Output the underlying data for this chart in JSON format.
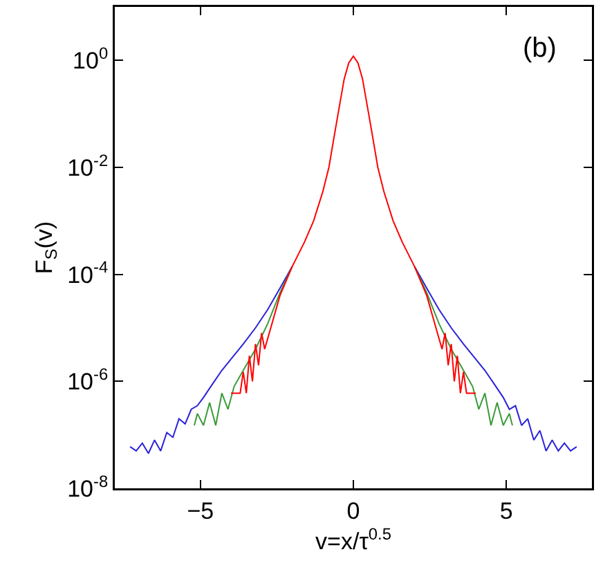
{
  "chart_data": {
    "type": "line",
    "xlabel": "v=x/τ$^{0.5}$",
    "ylabel": "F$_{S}$(v)",
    "annotations": [
      "(b)"
    ],
    "log": "y",
    "grid": false,
    "marker": "none",
    "line_style": "solid",
    "xlim": [
      -7.8,
      7.8
    ],
    "xticks": [
      -5,
      0,
      5
    ],
    "ylim": [
      1e-08,
      10
    ],
    "yticks": [
      {
        "value": 1e-08,
        "label": "10$^{-8}$"
      },
      {
        "value": 1e-06,
        "label": "10$^{-6}$"
      },
      {
        "value": 0.0001,
        "label": "10$^{-4}$"
      },
      {
        "value": 0.01,
        "label": "10$^{-2}$"
      },
      {
        "value": 1,
        "label": "10$^{0}$"
      }
    ],
    "series": [
      {
        "color": "#2a22d8",
        "x": [
          -7.3,
          -7.1,
          -6.9,
          -6.7,
          -6.5,
          -6.3,
          -6.1,
          -5.9,
          -5.7,
          -5.5,
          -5.3,
          -5.1,
          -4.9,
          -4.6,
          -4.3,
          -4.0,
          -3.6,
          -3.2,
          -2.8,
          -2.4,
          -2.0,
          -1.6,
          -1.3,
          -1.0,
          -0.8,
          -0.65,
          -0.5,
          -0.3,
          -0.15,
          0,
          0.15,
          0.3,
          0.5,
          0.65,
          0.8,
          1.0,
          1.3,
          1.6,
          2.0,
          2.4,
          2.8,
          3.2,
          3.6,
          4.0,
          4.3,
          4.6,
          4.9,
          5.1,
          5.3,
          5.5,
          5.7,
          5.9,
          6.1,
          6.3,
          6.5,
          6.7,
          6.9,
          7.1,
          7.3
        ],
        "values": [
          6e-08,
          5e-08,
          7e-08,
          4.5e-08,
          8e-08,
          5e-08,
          1.1e-07,
          9e-08,
          2e-07,
          1.6e-07,
          3e-07,
          3.5e-07,
          5e-07,
          9e-07,
          1.6e-06,
          2.6e-06,
          5e-06,
          1e-05,
          2.2e-05,
          5.5e-05,
          0.00014,
          null,
          null,
          null,
          null,
          null,
          null,
          null,
          null,
          null,
          null,
          null,
          null,
          null,
          null,
          null,
          null,
          null,
          0.00014,
          5.5e-05,
          2.2e-05,
          1e-05,
          5e-06,
          2.6e-06,
          1.6e-06,
          9e-07,
          5e-07,
          3e-07,
          3.5e-07,
          1.5e-07,
          2e-07,
          8e-08,
          1.2e-07,
          5e-08,
          8e-08,
          5e-08,
          7e-08,
          5e-08,
          6e-08
        ]
      },
      {
        "color": "#3a9a3a",
        "x": [
          -5.2,
          -5.1,
          -4.9,
          -4.7,
          -4.5,
          -4.3,
          -4.1,
          -3.9,
          -3.6,
          -3.2,
          -2.8,
          -2.4,
          -2.0,
          0,
          2.0,
          2.4,
          2.8,
          3.2,
          3.6,
          3.9,
          4.1,
          4.3,
          4.5,
          4.7,
          4.9,
          5.1,
          5.2
        ],
        "values": [
          1.5e-07,
          2.5e-07,
          1.5e-07,
          4e-07,
          1.5e-07,
          6e-07,
          3e-07,
          8e-07,
          1.6e-06,
          4e-06,
          1.2e-05,
          4.5e-05,
          0.00014,
          null,
          0.00014,
          4.5e-05,
          1.2e-05,
          4e-06,
          1.6e-06,
          8e-07,
          3e-07,
          6e-07,
          1.5e-07,
          4e-07,
          1.5e-07,
          2.5e-07,
          1.5e-07
        ]
      },
      {
        "color": "#ff0000",
        "x": [
          -4.0,
          -3.7,
          -3.6,
          -3.5,
          -3.4,
          -3.3,
          -3.2,
          -3.1,
          -3.0,
          -2.9,
          -2.7,
          -2.4,
          -2.0,
          -1.6,
          -1.3,
          -1.0,
          -0.8,
          -0.65,
          -0.5,
          -0.3,
          -0.15,
          0,
          0.15,
          0.3,
          0.5,
          0.65,
          0.8,
          1.0,
          1.3,
          1.6,
          2.0,
          2.4,
          2.7,
          2.9,
          3.0,
          3.1,
          3.2,
          3.3,
          3.4,
          3.5,
          3.6,
          3.7,
          4.0
        ],
        "values": [
          6e-07,
          6e-07,
          1.5e-06,
          6e-07,
          3e-06,
          1e-06,
          5e-06,
          2e-06,
          8e-06,
          4e-06,
          1e-05,
          4e-05,
          0.00014,
          0.0004,
          0.001,
          0.0035,
          0.01,
          0.032,
          0.1,
          0.45,
          0.9,
          1.2,
          0.9,
          0.45,
          0.1,
          0.032,
          0.01,
          0.0035,
          0.001,
          0.0004,
          0.00014,
          4e-05,
          1e-05,
          4e-06,
          8e-06,
          2e-06,
          5e-06,
          1e-06,
          3e-06,
          6e-07,
          1.5e-06,
          6e-07,
          6e-07
        ]
      }
    ]
  }
}
